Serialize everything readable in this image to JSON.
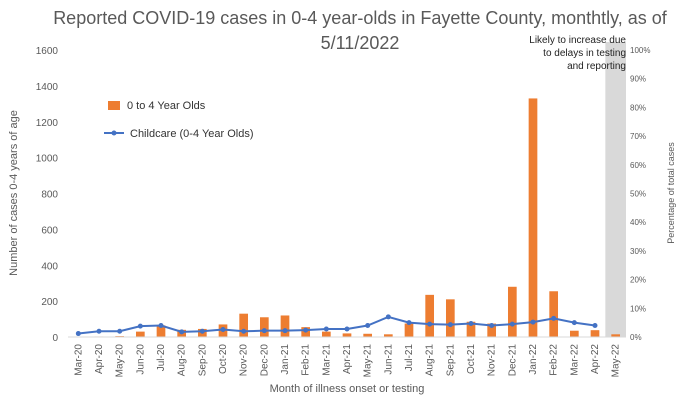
{
  "chart_data": {
    "type": "bar",
    "title_line1": "Reported COVID-19 cases in 0-4 year-olds in Fayette County, monthtly, as of",
    "title_line2": "5/11/2022",
    "xlabel": "Month of illness onset or testing",
    "ylabel": "Number of cases 0-4 years of age",
    "y2label": "Percentage of total cases",
    "ylim": [
      0,
      1600
    ],
    "y2lim": [
      0,
      100
    ],
    "yticks": [
      "0",
      "200",
      "400",
      "600",
      "800",
      "1000",
      "1200",
      "1400",
      "1600"
    ],
    "y2ticks": [
      "0%",
      "10%",
      "20%",
      "30%",
      "40%",
      "50%",
      "60%",
      "70%",
      "80%",
      "90%",
      "100%"
    ],
    "categories": [
      "Mar-20",
      "Apr-20",
      "May-20",
      "Jun-20",
      "Jul-20",
      "Aug-20",
      "Sep-20",
      "Oct-20",
      "Nov-20",
      "Dec-20",
      "Jan-21",
      "Feb-21",
      "Mar-21",
      "Apr-21",
      "May-21",
      "Jun-21",
      "Jul-21",
      "Aug-21",
      "Sep-21",
      "Oct-21",
      "Nov-21",
      "Dec-21",
      "Jan-22",
      "Feb-22",
      "Mar-22",
      "Apr-22",
      "May-22"
    ],
    "series": [
      {
        "name": "0 to 4 Year Olds",
        "kind": "bar",
        "axis": "left",
        "color": "#ED7D31",
        "values": [
          2,
          3,
          5,
          30,
          65,
          40,
          45,
          70,
          130,
          110,
          120,
          55,
          30,
          20,
          18,
          15,
          75,
          235,
          210,
          85,
          75,
          280,
          1330,
          255,
          35,
          38,
          15
        ]
      },
      {
        "name": "Childcare (0-4 Year Olds)",
        "kind": "line",
        "axis": "right",
        "color": "#4472C4",
        "values": [
          1.2,
          2.0,
          2.0,
          3.8,
          4.0,
          1.8,
          2.0,
          2.6,
          2.0,
          2.2,
          2.2,
          2.4,
          2.8,
          2.8,
          4.0,
          7.0,
          5.0,
          4.5,
          4.3,
          4.7,
          4.0,
          4.5,
          5.2,
          6.5,
          5.0,
          4.0,
          null
        ]
      }
    ],
    "annotation": [
      "Likely to increase due",
      "to delays in testing",
      "and reporting"
    ],
    "shaded_category": "May-22",
    "legend_position": "upper-left inside plot",
    "grid": false
  }
}
